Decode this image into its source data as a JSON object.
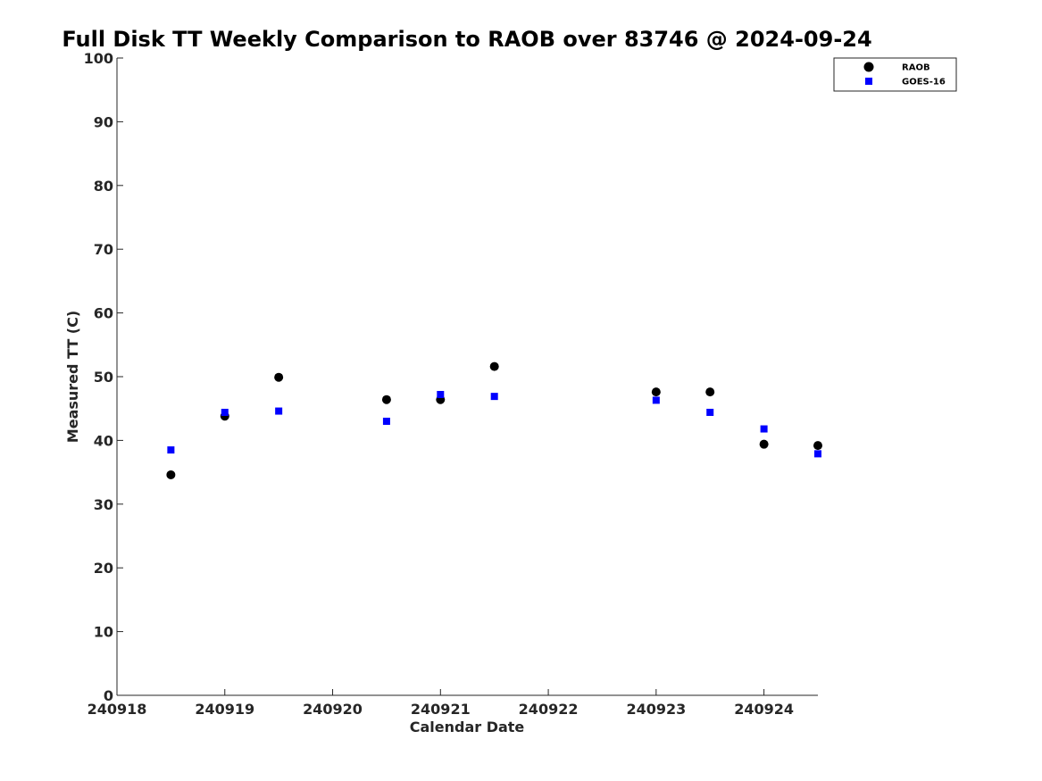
{
  "chart_data": {
    "type": "scatter",
    "title": "Full Disk TT Weekly Comparison to RAOB over 83746 @ 2024-09-24",
    "xlabel": "Calendar Date",
    "ylabel": "Measured TT (C)",
    "xlim": [
      240918,
      240924.5
    ],
    "ylim": [
      0,
      100
    ],
    "xticks": [
      240918,
      240919,
      240920,
      240921,
      240922,
      240923,
      240924
    ],
    "xtick_labels": [
      "240918",
      "240919",
      "240920",
      "240921",
      "240922",
      "240923",
      "240924"
    ],
    "yticks": [
      0,
      10,
      20,
      30,
      40,
      50,
      60,
      70,
      80,
      90,
      100
    ],
    "ytick_labels": [
      "0",
      "10",
      "20",
      "30",
      "40",
      "50",
      "60",
      "70",
      "80",
      "90",
      "100"
    ],
    "grid": false,
    "legend_position": "top-right",
    "series": [
      {
        "name": "RAOB",
        "marker": "circle",
        "color": "#000000",
        "x": [
          240918.5,
          240919,
          240919.5,
          240920.5,
          240921,
          240921.5,
          240923,
          240923.5,
          240924,
          240924.5
        ],
        "y": [
          34.6,
          43.8,
          49.9,
          46.4,
          46.4,
          51.6,
          47.6,
          47.6,
          39.4,
          39.2
        ]
      },
      {
        "name": "GOES-16",
        "marker": "square",
        "color": "#0000ff",
        "x": [
          240918.5,
          240919,
          240919.5,
          240920.5,
          240921,
          240921.5,
          240923,
          240923.5,
          240924,
          240924.5
        ],
        "y": [
          38.5,
          44.4,
          44.6,
          43.0,
          47.2,
          46.9,
          46.3,
          44.4,
          41.8,
          37.9
        ]
      }
    ]
  }
}
